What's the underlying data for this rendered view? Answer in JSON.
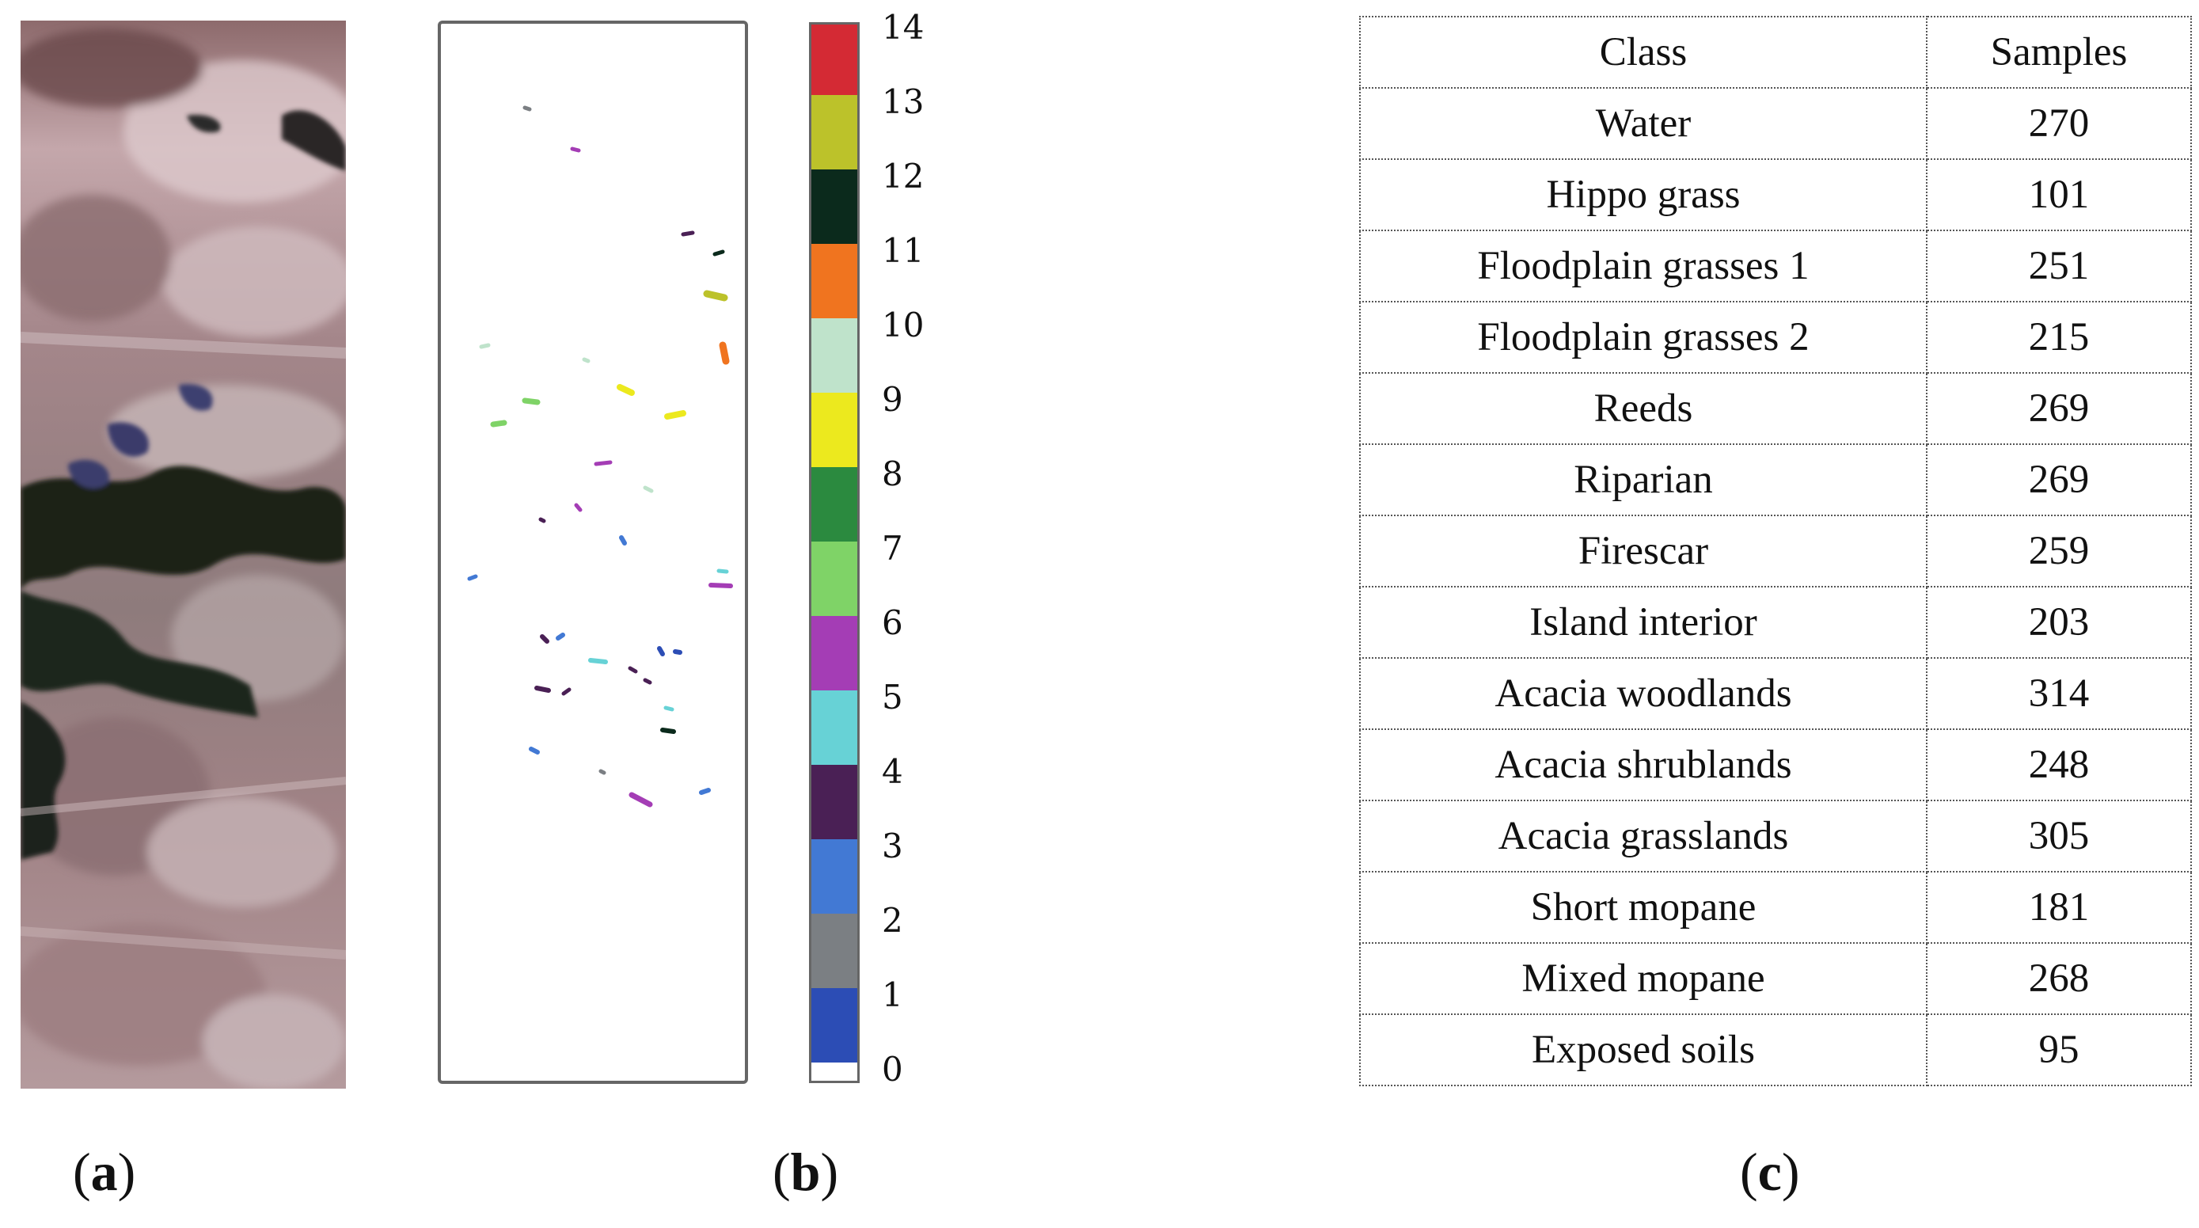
{
  "labels": {
    "a": "a",
    "b": "b",
    "c": "c"
  },
  "colorbar": {
    "ticks": [
      "14",
      "13",
      "12",
      "11",
      "10",
      "9",
      "8",
      "7",
      "6",
      "5",
      "4",
      "3",
      "2",
      "1",
      "0"
    ],
    "colors": [
      "#d42a34",
      "#bcc22a",
      "#0b2a1c",
      "#f0741f",
      "#bfe3cb",
      "#ece91e",
      "#2b8a3f",
      "#7fd367",
      "#a43db5",
      "#67d2d6",
      "#4a2055",
      "#4279d4",
      "#7b7f83",
      "#2c4db5",
      "#ffffff"
    ]
  },
  "table": {
    "header": {
      "class": "Class",
      "samples": "Samples"
    },
    "rows": [
      {
        "class": "Water",
        "samples": "270"
      },
      {
        "class": "Hippo grass",
        "samples": "101"
      },
      {
        "class": "Floodplain grasses 1",
        "samples": "251"
      },
      {
        "class": "Floodplain grasses 2",
        "samples": "215"
      },
      {
        "class": "Reeds",
        "samples": "269"
      },
      {
        "class": "Riparian",
        "samples": "269"
      },
      {
        "class": "Firescar",
        "samples": "259"
      },
      {
        "class": "Island interior",
        "samples": "203"
      },
      {
        "class": "Acacia woodlands",
        "samples": "314"
      },
      {
        "class": "Acacia shrublands",
        "samples": "248"
      },
      {
        "class": "Acacia grasslands",
        "samples": "305"
      },
      {
        "class": "Short mopane",
        "samples": "181"
      },
      {
        "class": "Mixed mopane",
        "samples": "268"
      },
      {
        "class": "Exposed soils",
        "samples": "95"
      }
    ]
  }
}
